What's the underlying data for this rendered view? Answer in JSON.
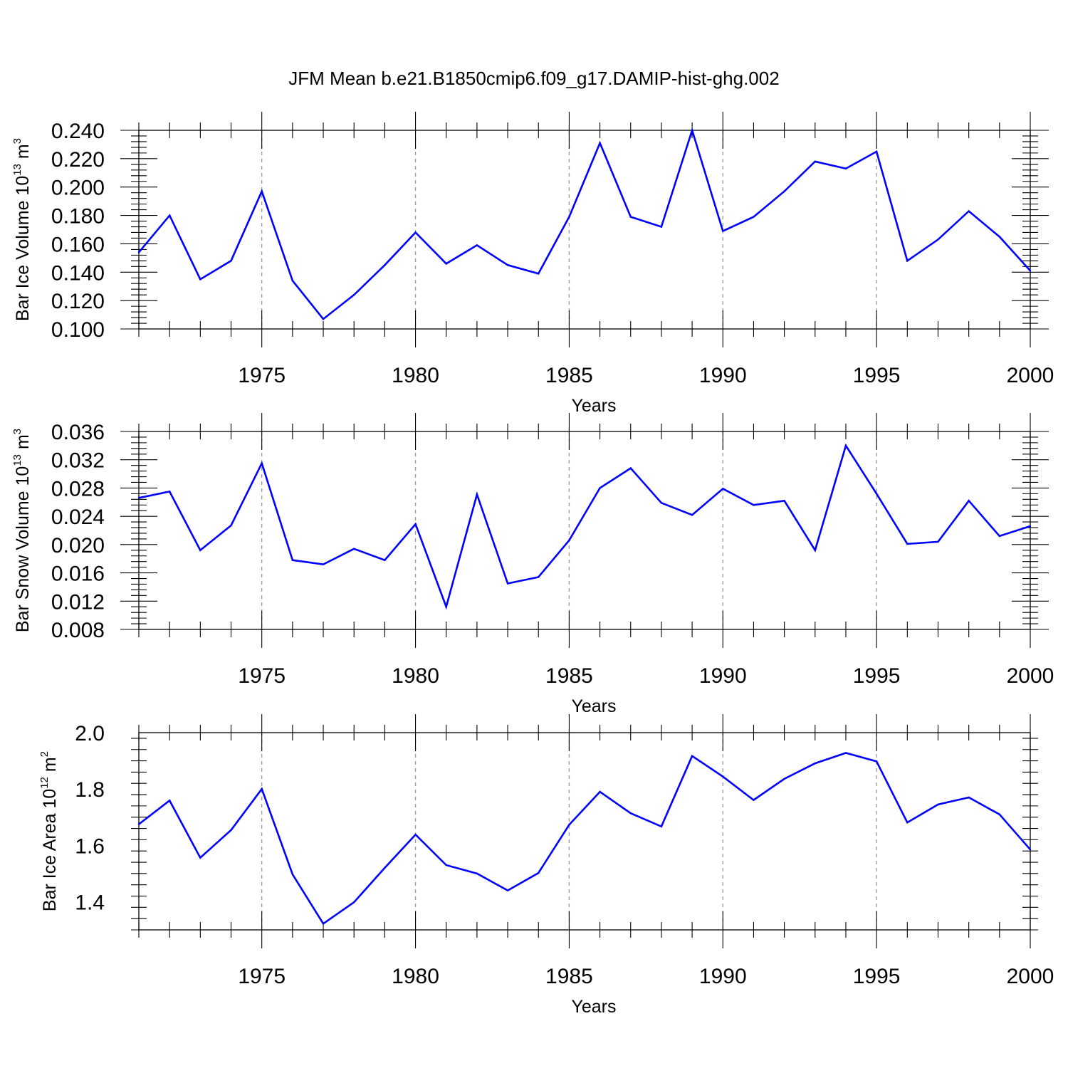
{
  "title": "JFM Mean b.e21.B1850cmip6.f09_g17.DAMIP-hist-ghg.002",
  "line_color": "#0000ff",
  "chart_data": [
    {
      "type": "line",
      "xlabel": "Years",
      "ylabel": {
        "prefix": "Bar Ice Volume 10",
        "exp": "13",
        "unit": " m",
        "unit_exp": "3"
      },
      "xlim": [
        1971,
        2000
      ],
      "ylim": [
        0.1,
        0.24
      ],
      "yticks": [
        "0.100",
        "0.120",
        "0.140",
        "0.160",
        "0.180",
        "0.200",
        "0.220",
        "0.240"
      ],
      "xticks": [
        "1975",
        "1980",
        "1985",
        "1990",
        "1995",
        "2000"
      ],
      "x": [
        1971,
        1972,
        1973,
        1974,
        1975,
        1976,
        1977,
        1978,
        1979,
        1980,
        1981,
        1982,
        1983,
        1984,
        1985,
        1986,
        1987,
        1988,
        1989,
        1990,
        1991,
        1992,
        1993,
        1994,
        1995,
        1996,
        1997,
        1998,
        1999,
        2000
      ],
      "values": [
        0.154,
        0.18,
        0.135,
        0.148,
        0.197,
        0.134,
        0.107,
        0.124,
        0.145,
        0.168,
        0.146,
        0.159,
        0.145,
        0.139,
        0.179,
        0.231,
        0.179,
        0.172,
        0.24,
        0.169,
        0.179,
        0.197,
        0.218,
        0.213,
        0.225,
        0.148,
        0.163,
        0.183,
        0.165,
        0.141
      ]
    },
    {
      "type": "line",
      "xlabel": "Years",
      "ylabel": {
        "prefix": "Bar Snow Volume 10",
        "exp": "13",
        "unit": " m",
        "unit_exp": "3"
      },
      "xlim": [
        1971,
        2000
      ],
      "ylim": [
        0.008,
        0.036
      ],
      "yticks": [
        "0.008",
        "0.012",
        "0.016",
        "0.020",
        "0.024",
        "0.028",
        "0.032",
        "0.036"
      ],
      "xticks": [
        "1975",
        "1980",
        "1985",
        "1990",
        "1995",
        "2000"
      ],
      "x": [
        1971,
        1972,
        1973,
        1974,
        1975,
        1976,
        1977,
        1978,
        1979,
        1980,
        1981,
        1982,
        1983,
        1984,
        1985,
        1986,
        1987,
        1988,
        1989,
        1990,
        1991,
        1992,
        1993,
        1994,
        1995,
        1996,
        1997,
        1998,
        1999,
        2000
      ],
      "values": [
        0.0266,
        0.0275,
        0.0192,
        0.0227,
        0.0315,
        0.0178,
        0.0172,
        0.0194,
        0.0178,
        0.0229,
        0.0112,
        0.0271,
        0.0145,
        0.0154,
        0.0206,
        0.028,
        0.0308,
        0.0259,
        0.0242,
        0.0279,
        0.0256,
        0.0262,
        0.0192,
        0.034,
        0.0272,
        0.0201,
        0.0204,
        0.0262,
        0.0212,
        0.0226
      ]
    },
    {
      "type": "line",
      "xlabel": "Years",
      "ylabel": {
        "prefix": "Bar Ice Area 10",
        "exp": "12",
        "unit": " m",
        "unit_exp": "2"
      },
      "xlim": [
        1971,
        2000
      ],
      "ylim": [
        1.3,
        2.0
      ],
      "yticks": [
        "1.4",
        "1.6",
        "1.8",
        "2.0"
      ],
      "xticks": [
        "1975",
        "1980",
        "1985",
        "1990",
        "1995",
        "2000"
      ],
      "x": [
        1971,
        1972,
        1973,
        1974,
        1975,
        1976,
        1977,
        1978,
        1979,
        1980,
        1981,
        1982,
        1983,
        1984,
        1985,
        1986,
        1987,
        1988,
        1989,
        1990,
        1991,
        1992,
        1993,
        1994,
        1995,
        1996,
        1997,
        1998,
        1999,
        2000
      ],
      "values": [
        1.675,
        1.759,
        1.556,
        1.654,
        1.8,
        1.497,
        1.322,
        1.398,
        1.52,
        1.638,
        1.53,
        1.5,
        1.44,
        1.502,
        1.673,
        1.79,
        1.714,
        1.667,
        1.917,
        1.844,
        1.761,
        1.836,
        1.891,
        1.928,
        1.898,
        1.681,
        1.745,
        1.77,
        1.71,
        1.585
      ]
    }
  ]
}
